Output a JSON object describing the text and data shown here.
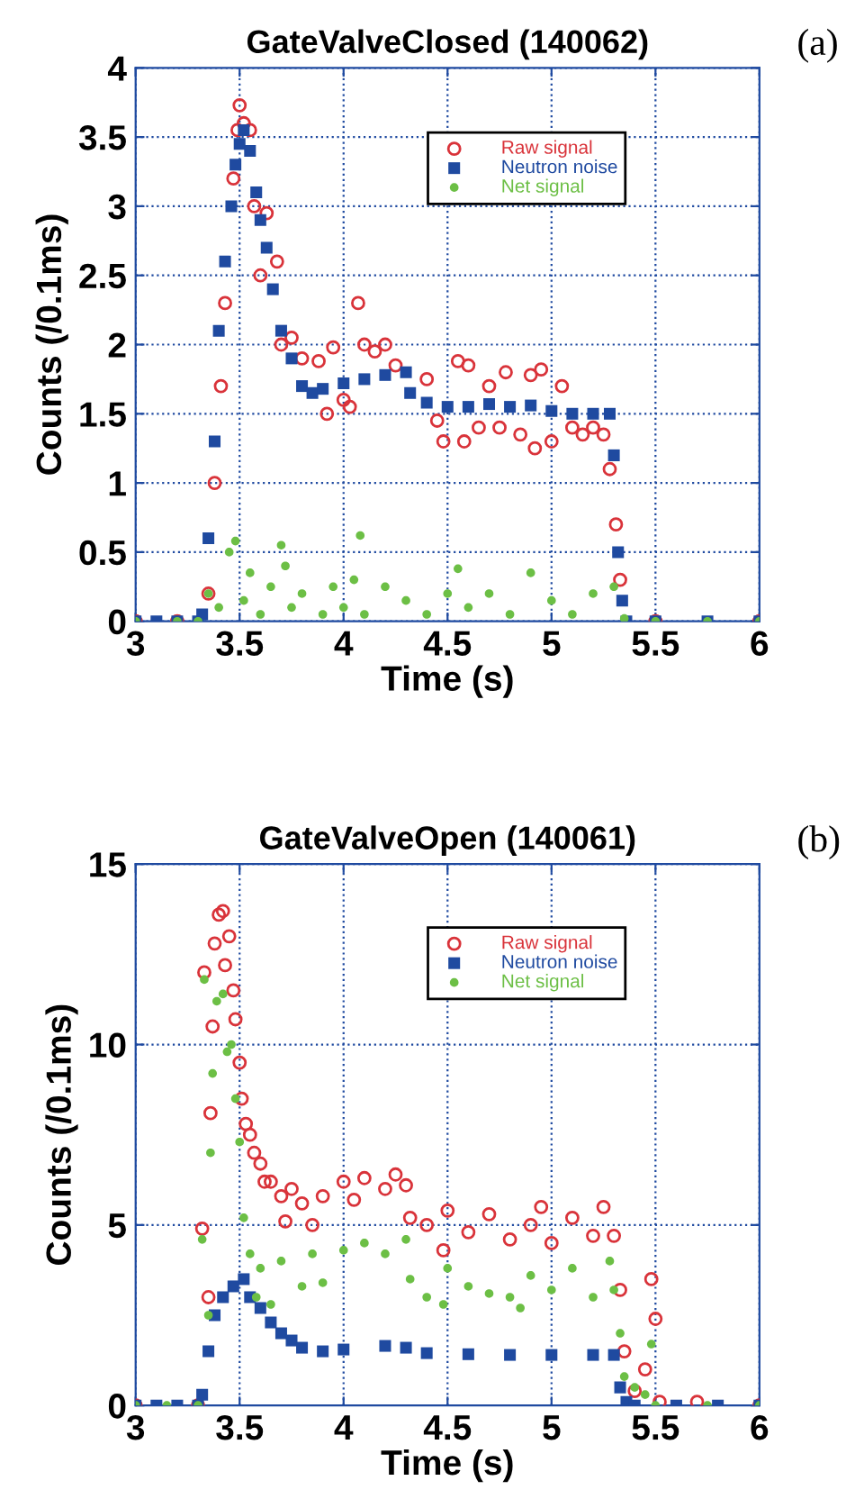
{
  "chart_data": [
    {
      "type": "scatter",
      "title": "GateValveClosed (140062)",
      "xlabel": "Time (s)",
      "ylabel": "Counts (/0.1ms)",
      "annotations": [
        "(a)"
      ],
      "xlim": [
        3,
        6
      ],
      "ylim": [
        0,
        4
      ],
      "xticks": [
        3,
        3.5,
        4,
        4.5,
        5,
        5.5,
        6
      ],
      "yticks": [
        0,
        0.5,
        1,
        1.5,
        2,
        2.5,
        3,
        3.5,
        4
      ],
      "grid": true,
      "legend": "top right",
      "series": [
        {
          "name": "Raw signal",
          "color": "#d9333a",
          "marker": "circle",
          "x": [
            3.0,
            3.2,
            3.35,
            3.38,
            3.41,
            3.43,
            3.45,
            3.47,
            3.49,
            3.5,
            3.52,
            3.55,
            3.57,
            3.6,
            3.63,
            3.68,
            3.7,
            3.75,
            3.8,
            3.88,
            3.92,
            3.95,
            4.0,
            4.03,
            4.07,
            4.1,
            4.15,
            4.2,
            4.25,
            4.4,
            4.45,
            4.48,
            4.55,
            4.58,
            4.6,
            4.65,
            4.7,
            4.75,
            4.78,
            4.85,
            4.9,
            4.92,
            4.95,
            5.0,
            5.05,
            5.1,
            5.15,
            5.2,
            5.25,
            5.28,
            5.31,
            5.33,
            5.42,
            5.5,
            6.0
          ],
          "values": [
            0,
            0,
            0.2,
            1.0,
            1.7,
            2.3,
            null,
            3.2,
            3.55,
            3.73,
            3.6,
            3.55,
            3.0,
            2.5,
            2.95,
            2.6,
            2.0,
            2.05,
            1.9,
            1.88,
            1.5,
            1.98,
            1.6,
            1.55,
            2.3,
            2.0,
            1.95,
            2.0,
            1.85,
            1.75,
            1.45,
            1.3,
            1.88,
            1.3,
            1.85,
            1.4,
            1.7,
            1.4,
            1.8,
            1.35,
            1.78,
            1.25,
            1.82,
            1.3,
            1.7,
            1.4,
            1.35,
            1.4,
            1.35,
            1.1,
            0.7,
            0.3,
            null,
            0,
            0
          ]
        },
        {
          "name": "Neutron noise",
          "color": "#1f4aa0",
          "marker": "square",
          "x": [
            3.0,
            3.1,
            3.2,
            3.3,
            3.32,
            3.35,
            3.38,
            3.4,
            3.43,
            3.46,
            3.48,
            3.5,
            3.52,
            3.55,
            3.58,
            3.6,
            3.63,
            3.66,
            3.7,
            3.75,
            3.8,
            3.85,
            3.9,
            4.0,
            4.1,
            4.2,
            4.3,
            4.32,
            4.4,
            4.5,
            4.6,
            4.7,
            4.8,
            4.9,
            5.0,
            5.1,
            5.2,
            5.28,
            5.3,
            5.32,
            5.34,
            5.36,
            5.5,
            5.75,
            6.0
          ],
          "values": [
            0,
            0,
            0,
            0,
            0.05,
            0.6,
            1.3,
            2.1,
            2.6,
            3.0,
            3.3,
            3.45,
            3.55,
            3.4,
            3.1,
            2.9,
            2.7,
            2.4,
            2.1,
            1.9,
            1.7,
            1.65,
            1.68,
            1.72,
            1.75,
            1.78,
            1.8,
            1.65,
            1.58,
            1.55,
            1.55,
            1.57,
            1.55,
            1.56,
            1.52,
            1.5,
            1.5,
            1.5,
            1.2,
            0.5,
            0.15,
            0,
            0,
            0,
            0
          ]
        },
        {
          "name": "Net signal",
          "color": "#6cbf45",
          "marker": "circle_small",
          "x": [
            3.0,
            3.2,
            3.3,
            3.35,
            3.4,
            3.45,
            3.48,
            3.52,
            3.55,
            3.6,
            3.65,
            3.7,
            3.72,
            3.75,
            3.8,
            3.9,
            3.95,
            4.0,
            4.05,
            4.08,
            4.1,
            4.2,
            4.3,
            4.4,
            4.5,
            4.55,
            4.6,
            4.7,
            4.8,
            4.9,
            5.0,
            5.1,
            5.2,
            5.3,
            5.35,
            5.5,
            5.75,
            6.0
          ],
          "values": [
            0,
            0,
            0,
            0.2,
            0.1,
            0.5,
            0.58,
            0.15,
            0.35,
            0.05,
            0.25,
            0.55,
            0.4,
            0.1,
            0.2,
            0.05,
            0.25,
            0.1,
            0.3,
            0.62,
            0.05,
            0.25,
            0.15,
            0.05,
            0.2,
            0.38,
            0.1,
            0.2,
            0.05,
            0.35,
            0.15,
            0.05,
            0.2,
            0.25,
            0.02,
            0,
            0,
            0
          ]
        }
      ]
    },
    {
      "type": "scatter",
      "title": "GateValveOpen (140061)",
      "xlabel": "Time (s)",
      "ylabel": "Counts (/0.1ms)",
      "annotations": [
        "(b)"
      ],
      "xlim": [
        3,
        6
      ],
      "ylim": [
        0,
        15
      ],
      "xticks": [
        3,
        3.5,
        4,
        4.5,
        5,
        5.5,
        6
      ],
      "yticks": [
        0,
        5,
        10,
        15
      ],
      "grid": true,
      "legend": "top right",
      "series": [
        {
          "name": "Raw signal",
          "color": "#d9333a",
          "marker": "circle",
          "x": [
            3.0,
            3.3,
            3.32,
            3.33,
            3.35,
            3.36,
            3.37,
            3.38,
            3.4,
            3.42,
            3.43,
            3.45,
            3.47,
            3.48,
            3.5,
            3.51,
            3.53,
            3.55,
            3.57,
            3.6,
            3.62,
            3.65,
            3.7,
            3.72,
            3.75,
            3.8,
            3.85,
            3.9,
            4.0,
            4.05,
            4.1,
            4.2,
            4.25,
            4.3,
            4.32,
            4.4,
            4.48,
            4.5,
            4.6,
            4.7,
            4.8,
            4.9,
            4.95,
            5.0,
            5.1,
            5.2,
            5.25,
            5.3,
            5.33,
            5.35,
            5.4,
            5.45,
            5.48,
            5.5,
            5.52,
            5.7,
            6.0
          ],
          "values": [
            0,
            0,
            4.9,
            12,
            3.0,
            8.1,
            10.5,
            12.8,
            13.6,
            13.7,
            12.2,
            13.0,
            11.5,
            10.7,
            9.5,
            8.5,
            7.8,
            7.5,
            7.0,
            6.7,
            6.2,
            6.2,
            5.8,
            5.1,
            6.0,
            5.6,
            5.0,
            5.8,
            6.2,
            5.7,
            6.3,
            6.0,
            6.4,
            6.1,
            5.2,
            5.0,
            4.3,
            5.4,
            4.8,
            5.3,
            4.6,
            5.0,
            5.5,
            4.5,
            5.2,
            4.7,
            5.5,
            4.7,
            3.2,
            1.5,
            0.4,
            1.0,
            3.5,
            2.4,
            0.1,
            0.1,
            0
          ]
        },
        {
          "name": "Neutron noise",
          "color": "#1f4aa0",
          "marker": "square",
          "x": [
            3.0,
            3.1,
            3.2,
            3.3,
            3.32,
            3.35,
            3.38,
            3.42,
            3.47,
            3.52,
            3.55,
            3.6,
            3.65,
            3.7,
            3.75,
            3.8,
            3.9,
            4.0,
            4.2,
            4.3,
            4.4,
            4.6,
            4.8,
            5.0,
            5.2,
            5.3,
            5.33,
            5.36,
            5.4,
            5.6,
            5.8,
            6.0
          ],
          "values": [
            0,
            0,
            0,
            0,
            0.3,
            1.5,
            2.5,
            3.0,
            3.3,
            3.5,
            3.0,
            2.7,
            2.3,
            2.0,
            1.8,
            1.6,
            1.5,
            1.55,
            1.65,
            1.6,
            1.45,
            1.42,
            1.4,
            1.4,
            1.4,
            1.4,
            0.5,
            0.1,
            0,
            0,
            0,
            0
          ]
        },
        {
          "name": "Net signal",
          "color": "#6cbf45",
          "marker": "circle_small",
          "x": [
            3.0,
            3.15,
            3.3,
            3.32,
            3.33,
            3.35,
            3.36,
            3.37,
            3.39,
            3.42,
            3.44,
            3.46,
            3.48,
            3.5,
            3.52,
            3.55,
            3.58,
            3.6,
            3.65,
            3.7,
            3.8,
            3.85,
            3.9,
            4.0,
            4.1,
            4.2,
            4.3,
            4.32,
            4.4,
            4.48,
            4.5,
            4.6,
            4.7,
            4.8,
            4.85,
            4.9,
            5.0,
            5.1,
            5.2,
            5.28,
            5.3,
            5.33,
            5.35,
            5.4,
            5.45,
            5.48,
            5.5,
            5.75,
            6.0
          ],
          "values": [
            0,
            0,
            0,
            4.6,
            11.8,
            2.5,
            7.0,
            9.2,
            11.2,
            11.4,
            9.8,
            10.0,
            8.5,
            7.3,
            5.2,
            4.2,
            3.0,
            3.8,
            2.8,
            4.0,
            3.3,
            4.2,
            3.4,
            4.3,
            4.5,
            4.2,
            4.6,
            3.5,
            3.0,
            2.8,
            3.8,
            3.3,
            3.1,
            3.0,
            2.7,
            3.6,
            3.2,
            3.8,
            3.0,
            4.0,
            3.2,
            2.0,
            0.8,
            0.5,
            0.3,
            1.7,
            0,
            0,
            0
          ]
        }
      ]
    }
  ]
}
